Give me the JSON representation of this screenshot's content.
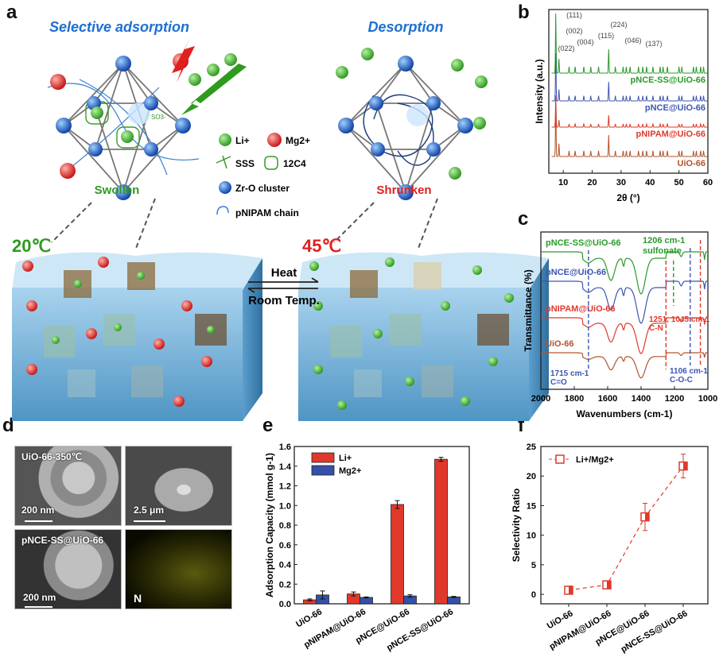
{
  "panel_labels": {
    "a": "a",
    "b": "b",
    "c": "c",
    "d": "d",
    "e": "e",
    "f": "f"
  },
  "panel_a": {
    "title_left": "Selective adsorption",
    "title_right": "Desorption",
    "state_left": "Swollen",
    "state_right": "Shrunken",
    "temp_left": "20℃",
    "temp_right": "45℃",
    "arrow_forward": "Heat",
    "arrow_back": "Room Temp.",
    "ion_li": "Li",
    "ion_li_sup": "+",
    "ion_mg": "Mg",
    "ion_mg_sup": "2+",
    "sulfonate_label": "SO3-",
    "legend": {
      "li": "Li+",
      "mg": "Mg2+",
      "sss": "SSS",
      "crown": "12C4",
      "cluster": "Zr-O cluster",
      "chain": "pNIPAM chain"
    },
    "colors": {
      "blue_title": "#1f6fd1",
      "green": "#2e9a1e",
      "red": "#e02020",
      "block": "#7fb6d8"
    }
  },
  "chart_data": [
    {
      "id": "b",
      "type": "line",
      "xlabel": "2θ (°)",
      "ylabel": "Intensity (a.u.)",
      "xlim": [
        5,
        60
      ],
      "xticks": [
        "10",
        "20",
        "30",
        "40",
        "50",
        "60"
      ],
      "series": [
        {
          "name": "pNCE-SS@UiO-66",
          "color": "#2a9a2a"
        },
        {
          "name": "pNCE@UiO-66",
          "color": "#3d56b0"
        },
        {
          "name": "pNIPAM@UiO-66",
          "color": "#e0392b"
        },
        {
          "name": "UiO-66",
          "color": "#b3532b"
        }
      ],
      "peaks_2theta": [
        7.4,
        8.5,
        12.0,
        14.1,
        17.1,
        22.2,
        25.7,
        30.7,
        33.1
      ],
      "peak_labels": [
        "(111)",
        "(002)",
        "(022)",
        "(004)",
        "(115)",
        "(224)",
        "(046)",
        "(137)"
      ]
    },
    {
      "id": "c",
      "type": "line",
      "xlabel": "Wavenumbers (cm-1)",
      "ylabel": "Transmittance (%)",
      "xlim": [
        2000,
        1000
      ],
      "xticks": [
        "2000",
        "1800",
        "1600",
        "1400",
        "1200",
        "1000"
      ],
      "series": [
        {
          "name": "pNCE-SS@UiO-66",
          "color": "#2a9a2a"
        },
        {
          "name": "pNCE@UiO-66",
          "color": "#3d56b0"
        },
        {
          "name": "pNIPAM@UiO-66",
          "color": "#e0392b"
        },
        {
          "name": "UiO-66",
          "color": "#b3532b"
        }
      ],
      "annotations": [
        {
          "text": "1206 cm-1",
          "sub": "sulfonate",
          "x": 1206,
          "color": "#2a9a2a"
        },
        {
          "text": "1251, 1045 cm-1",
          "sub": "C-N",
          "x": 1251,
          "x2": 1045,
          "color": "#e0392b"
        },
        {
          "text": "1715 cm-1",
          "sub": "C=O",
          "x": 1715,
          "color": "#3d56b0"
        },
        {
          "text": "1106 cm-1",
          "sub": "C-O-C",
          "x": 1106,
          "color": "#3d56b0"
        }
      ]
    },
    {
      "id": "e",
      "type": "bar",
      "ylabel": "Adsorption Capacity (mmol g-1)",
      "ylim": [
        0,
        1.6
      ],
      "yticks": [
        "0.0",
        "0.2",
        "0.4",
        "0.6",
        "0.8",
        "1.0",
        "1.2",
        "1.4",
        "1.6"
      ],
      "categories": [
        "UiO-66",
        "pNIPAM@UiO-66",
        "pNCE@UiO-66",
        "pNCE-SS@UiO-66"
      ],
      "series": [
        {
          "name": "Li+",
          "color": "#e0392b",
          "values": [
            0.04,
            0.1,
            1.01,
            1.47
          ],
          "errors": [
            0.01,
            0.02,
            0.04,
            0.02
          ]
        },
        {
          "name": "Mg2+",
          "color": "#3550a8",
          "values": [
            0.09,
            0.065,
            0.08,
            0.07
          ],
          "errors": [
            0.04,
            0.005,
            0.012,
            0.006
          ]
        }
      ],
      "legend": "top-left"
    },
    {
      "id": "f",
      "type": "line",
      "ylabel": "Selectivity Ratio",
      "ylim": [
        -1.6,
        25
      ],
      "yticks": [
        "0",
        "5",
        "10",
        "15",
        "20",
        "25"
      ],
      "categories": [
        "UiO-66",
        "pNIPAM@UiO-66",
        "pNCE@UiO-66",
        "pNCE-SS@UiO-66"
      ],
      "series": [
        {
          "name": "Li+/Mg2+",
          "color": "#e0392b",
          "values": [
            0.7,
            1.6,
            13.1,
            21.7
          ],
          "errors": [
            0.3,
            0.3,
            2.3,
            2.0
          ]
        }
      ],
      "legend": "top-left"
    }
  ],
  "panel_d": {
    "img1_label": "UiO-66-350℃",
    "img1_scale": "200 nm",
    "img2_scale": "2.5 μm",
    "img3_label": "pNCE-SS@UiO-66",
    "img3_scale": "200 nm",
    "img4_label": "N"
  }
}
